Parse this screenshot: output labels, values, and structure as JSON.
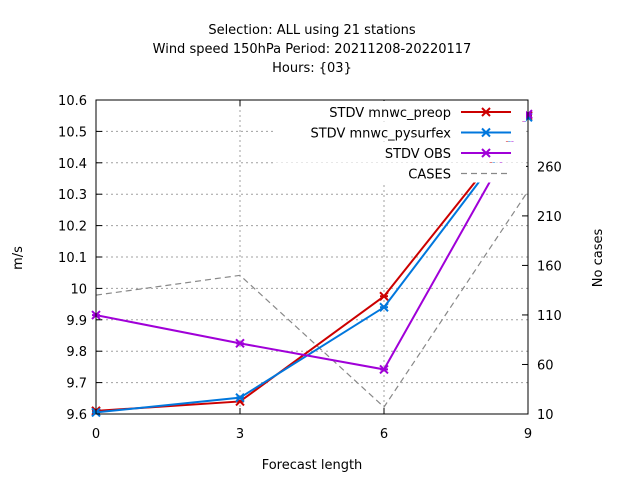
{
  "chart_data": {
    "type": "line",
    "title_lines": [
      "Selection: ALL using    21 stations",
      "Wind speed 150hPa   Period: 20211208-20220117",
      "Hours: {03}"
    ],
    "xlabel": "Forecast length",
    "ylabel": "m/s",
    "y2label": "No cases",
    "x": [
      0,
      3,
      6,
      9
    ],
    "xlim": [
      0,
      9
    ],
    "ylim": [
      9.6,
      10.6
    ],
    "y2lim": [
      10,
      327
    ],
    "xticks": [
      "0",
      "3",
      "6",
      "9"
    ],
    "yticks": [
      "9.6",
      "9.7",
      "9.8",
      "9.9",
      "10",
      "10.1",
      "10.2",
      "10.3",
      "10.4",
      "10.5",
      "10.6"
    ],
    "y2ticks": [
      "10",
      "60",
      "110",
      "160",
      "210",
      "260"
    ],
    "grid": true,
    "legend_position": "top-right",
    "series": [
      {
        "name": "STDV mnwc_preop",
        "values": [
          9.61,
          9.64,
          9.975,
          10.55
        ],
        "color": "#cc0000",
        "marker": "x",
        "axis": "y"
      },
      {
        "name": "STDV mnwc_pysurfex",
        "values": [
          9.605,
          9.652,
          9.94,
          10.545
        ],
        "color": "#0077dd",
        "marker": "x",
        "axis": "y"
      },
      {
        "name": "STDV OBS",
        "values": [
          9.915,
          9.825,
          9.742,
          10.555
        ],
        "color": "#a000d8",
        "marker": "x",
        "axis": "y"
      },
      {
        "name": "CASES",
        "values": [
          130,
          150,
          17,
          235
        ],
        "color": "#888888",
        "marker": "none",
        "dashed": true,
        "axis": "y2"
      }
    ]
  }
}
